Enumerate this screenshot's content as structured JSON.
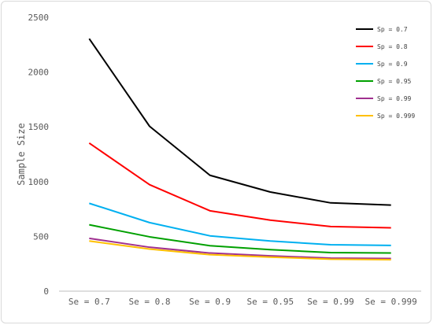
{
  "chart_data": {
    "type": "line",
    "title": "",
    "xlabel": "",
    "ylabel": "Sample Size",
    "categories": [
      "Se = 0.7",
      "Se = 0.8",
      "Se = 0.9",
      "Se = 0.95",
      "Se = 0.99",
      "Se = 0.999"
    ],
    "ylim": [
      0,
      2500
    ],
    "yticks": [
      0,
      500,
      1000,
      1500,
      2000,
      2500
    ],
    "grid": false,
    "legend_position": "top-right",
    "series": [
      {
        "name": "Sp = 0.7",
        "color": "#000000",
        "values": [
          2305,
          1505,
          1058,
          905,
          806,
          786
        ]
      },
      {
        "name": "Sp = 0.8",
        "color": "#ff0000",
        "values": [
          1352,
          972,
          734,
          648,
          590,
          578
        ]
      },
      {
        "name": "Sp = 0.9",
        "color": "#00b0f0",
        "values": [
          802,
          626,
          505,
          458,
          424,
          418
        ]
      },
      {
        "name": "Sp = 0.95",
        "color": "#00a000",
        "values": [
          606,
          496,
          415,
          379,
          352,
          348
        ]
      },
      {
        "name": "Sp = 0.99",
        "color": "#a0308f",
        "values": [
          482,
          401,
          348,
          322,
          302,
          298
        ]
      },
      {
        "name": "Sp = 0.999",
        "color": "#ffc000",
        "values": [
          458,
          384,
          333,
          311,
          292,
          287
        ]
      }
    ]
  }
}
